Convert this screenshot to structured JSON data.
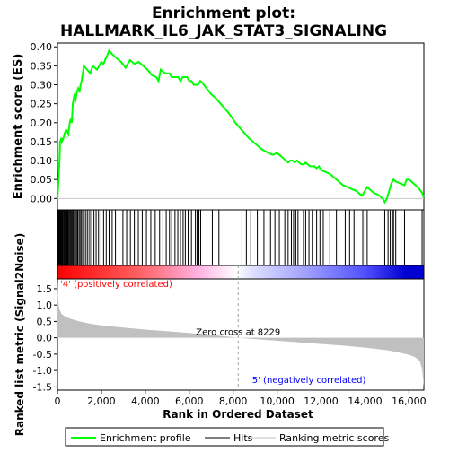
{
  "chart_data": {
    "type": "line",
    "title": "Enrichment plot:\nHALLMARK_IL6_JAK_STAT3_SIGNALING",
    "es_panel": {
      "ylabel": "Enrichment score (ES)",
      "ylim": [
        -0.03,
        0.41
      ],
      "yticks": [
        0.0,
        0.05,
        0.1,
        0.15,
        0.2,
        0.25,
        0.3,
        0.35,
        0.4
      ],
      "ytick_labels": [
        "0.00",
        "0.05",
        "0.10",
        "0.15",
        "0.20",
        "0.25",
        "0.30",
        "0.35",
        "0.40"
      ],
      "series": [
        {
          "name": "Enrichment profile",
          "color": "#00ff00",
          "x": [
            0,
            60,
            100,
            120,
            180,
            200,
            280,
            320,
            380,
            420,
            500,
            560,
            600,
            650,
            700,
            760,
            820,
            880,
            940,
            1000,
            1050,
            1100,
            1200,
            1350,
            1500,
            1600,
            1800,
            1900,
            2000,
            2100,
            2200,
            2250,
            2350,
            2500,
            2700,
            2900,
            3100,
            3200,
            3300,
            3400,
            3500,
            3700,
            3900,
            4100,
            4300,
            4500,
            4600,
            4700,
            4800,
            4900,
            5000,
            5100,
            5200,
            5300,
            5400,
            5500,
            5600,
            5700,
            5800,
            5900,
            6000,
            6100,
            6200,
            6300,
            6400,
            6500,
            6600,
            6800,
            7000,
            7200,
            7500,
            7800,
            8100,
            8400,
            8700,
            9000,
            9300,
            9600,
            9800,
            10000,
            10200,
            10400,
            10500,
            10600,
            10700,
            10800,
            10900,
            11000,
            11100,
            11200,
            11300,
            11400,
            11500,
            11600,
            11700,
            11800,
            11900,
            12000,
            12200,
            12400,
            12600,
            12800,
            13000,
            13200,
            13400,
            13600,
            13800,
            13900,
            14000,
            14100,
            14200,
            14400,
            14600,
            14800,
            14900,
            15000,
            15100,
            15200,
            15300,
            15400,
            15600,
            15800,
            15900,
            16000,
            16200,
            16400,
            16600,
            16680
          ],
          "y": [
            0.0,
            0.06,
            0.11,
            0.15,
            0.16,
            0.15,
            0.16,
            0.17,
            0.18,
            0.18,
            0.17,
            0.2,
            0.21,
            0.2,
            0.25,
            0.27,
            0.26,
            0.28,
            0.29,
            0.28,
            0.3,
            0.31,
            0.35,
            0.34,
            0.33,
            0.35,
            0.34,
            0.35,
            0.36,
            0.355,
            0.37,
            0.375,
            0.39,
            0.38,
            0.37,
            0.36,
            0.345,
            0.355,
            0.365,
            0.36,
            0.355,
            0.36,
            0.35,
            0.34,
            0.325,
            0.32,
            0.31,
            0.34,
            0.335,
            0.33,
            0.33,
            0.33,
            0.32,
            0.32,
            0.32,
            0.32,
            0.31,
            0.32,
            0.32,
            0.32,
            0.31,
            0.31,
            0.3,
            0.3,
            0.3,
            0.31,
            0.305,
            0.29,
            0.275,
            0.265,
            0.245,
            0.225,
            0.2,
            0.18,
            0.16,
            0.145,
            0.13,
            0.12,
            0.115,
            0.12,
            0.11,
            0.1,
            0.095,
            0.1,
            0.1,
            0.095,
            0.1,
            0.095,
            0.09,
            0.09,
            0.095,
            0.09,
            0.085,
            0.085,
            0.085,
            0.08,
            0.085,
            0.075,
            0.07,
            0.065,
            0.055,
            0.045,
            0.035,
            0.03,
            0.025,
            0.02,
            0.01,
            0.01,
            0.02,
            0.03,
            0.025,
            0.015,
            0.01,
            0.0,
            -0.01,
            0.0,
            0.02,
            0.04,
            0.05,
            0.045,
            0.04,
            0.035,
            0.05,
            0.05,
            0.04,
            0.03,
            0.015,
            0.003
          ]
        }
      ]
    },
    "hits": [
      20,
      60,
      90,
      110,
      130,
      160,
      190,
      210,
      240,
      280,
      310,
      350,
      380,
      410,
      450,
      480,
      520,
      560,
      600,
      640,
      680,
      720,
      770,
      820,
      870,
      920,
      980,
      1030,
      1090,
      1150,
      1220,
      1300,
      1380,
      1470,
      1560,
      1660,
      1760,
      1870,
      1980,
      2100,
      2220,
      2350,
      2490,
      2640,
      2800,
      2980,
      3150,
      3320,
      3500,
      3680,
      3860,
      4050,
      4250,
      4450,
      4650,
      4800,
      4950,
      5100,
      5200,
      5350,
      5480,
      5600,
      5720,
      5820,
      5950,
      6100,
      6280,
      6360,
      6440,
      6520,
      7050,
      7350,
      8400,
      8600,
      8800,
      9100,
      9400,
      9700,
      9900,
      10100,
      10350,
      10500,
      10650,
      10750,
      10850,
      10950,
      11200,
      11300,
      11450,
      11600,
      11800,
      11950,
      12100,
      12400,
      12700,
      13100,
      13300,
      13500,
      13900,
      14000,
      14100,
      14900,
      15050,
      15150,
      15250,
      15300,
      15400,
      15800,
      16600
    ],
    "ranking": {
      "ylabel": "Ranked list metric (Signal2Noise)",
      "xlabel": "Rank in Ordered Dataset",
      "xlim": [
        0,
        16680
      ],
      "ylim": [
        -1.6,
        1.8
      ],
      "yticks": [
        -1.5,
        -1.0,
        -0.5,
        0.0,
        0.5,
        1.0,
        1.5
      ],
      "ytick_labels": [
        "-1.5",
        "-1.0",
        "-0.5",
        "0.0",
        "0.5",
        "1.0",
        "1.5"
      ],
      "xticks": [
        0,
        2000,
        4000,
        6000,
        8000,
        10000,
        12000,
        14000,
        16000
      ],
      "xtick_labels": [
        "0",
        "2,000",
        "4,000",
        "6,000",
        "8,000",
        "10,000",
        "12,000",
        "14,000",
        "16,000"
      ],
      "metric_profile": {
        "x": [
          0,
          20,
          50,
          100,
          200,
          400,
          700,
          1000,
          1500,
          2000,
          3000,
          4000,
          5000,
          6000,
          7000,
          8229,
          9000,
          10000,
          11000,
          12000,
          13000,
          14000,
          15000,
          15500,
          16000,
          16300,
          16500,
          16600,
          16680
        ],
        "y": [
          1.75,
          1.3,
          1.05,
          0.85,
          0.72,
          0.63,
          0.56,
          0.5,
          0.43,
          0.38,
          0.31,
          0.25,
          0.2,
          0.15,
          0.09,
          0.0,
          -0.04,
          -0.09,
          -0.14,
          -0.19,
          -0.24,
          -0.3,
          -0.38,
          -0.44,
          -0.52,
          -0.6,
          -0.72,
          -0.95,
          -1.5
        ]
      },
      "zero_cross_label": "Zero cross at 8229",
      "zero_cross_rank": 8229,
      "positive_label": "'4' (positively correlated)",
      "negative_label": "'5' (negatively correlated)"
    },
    "legend": {
      "items": [
        {
          "label": "Enrichment profile",
          "color": "#00ff00"
        },
        {
          "label": "Hits",
          "color": "#000000"
        },
        {
          "label": "Ranking metric scores",
          "color": "#c0c0c0"
        }
      ]
    },
    "colors": {
      "positive_label": "#ff0000",
      "negative_label": "#0000ff",
      "metric_fill": "#c0c0c0",
      "gradient": [
        "#ff0000",
        "#ffffff",
        "#0000ff"
      ]
    }
  }
}
